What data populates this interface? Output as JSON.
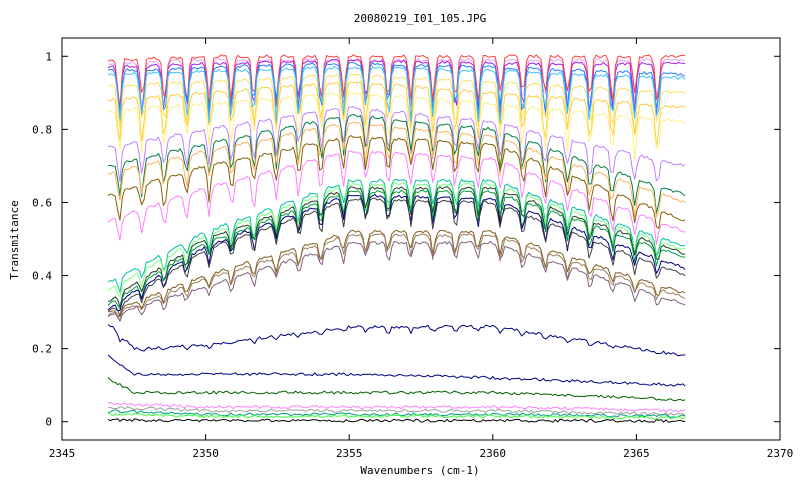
{
  "chart_data": {
    "type": "line",
    "title": "20080219_I01_105.JPG",
    "xlabel": "Wavenumbers (cm-1)",
    "ylabel": "Transmitance",
    "xlim": [
      2345,
      2370
    ],
    "ylim": [
      -0.05,
      1.05
    ],
    "x_ticks": [
      2345,
      2350,
      2355,
      2360,
      2365,
      2370
    ],
    "y_ticks": [
      0,
      0.2,
      0.4,
      0.6,
      0.8,
      1
    ],
    "x_tick_labels": [
      "2345",
      "2350",
      "2355",
      "2360",
      "2365",
      "2370"
    ],
    "y_tick_labels": [
      "0",
      "0.2",
      "0.4",
      "0.6",
      "0.8",
      "1"
    ],
    "grid": false,
    "legend": "none",
    "x_range_data": [
      2346.6,
      2366.7
    ],
    "series": [
      {
        "color": "#e8a0f0",
        "values": [
          [
            2346.6,
            0.98
          ],
          [
            2350,
            0.99
          ],
          [
            2355,
            0.99
          ],
          [
            2360,
            0.99
          ],
          [
            2366.7,
            0.99
          ]
        ]
      },
      {
        "color": "#a020f0",
        "values": [
          [
            2346.6,
            0.97
          ],
          [
            2350,
            0.98
          ],
          [
            2355,
            0.99
          ],
          [
            2360,
            0.98
          ],
          [
            2366.7,
            0.98
          ]
        ]
      },
      {
        "color": "#ff4040",
        "values": [
          [
            2346.6,
            0.99
          ],
          [
            2350,
            1.0
          ],
          [
            2355,
            1.0
          ],
          [
            2360,
            1.0
          ],
          [
            2366.7,
            1.0
          ]
        ]
      },
      {
        "color": "#2080ff",
        "values": [
          [
            2346.6,
            0.96
          ],
          [
            2350,
            0.97
          ],
          [
            2355,
            0.98
          ],
          [
            2360,
            0.97
          ],
          [
            2366.7,
            0.95
          ]
        ]
      },
      {
        "color": "#ffe060",
        "values": [
          [
            2346.6,
            0.92
          ],
          [
            2350,
            0.93
          ],
          [
            2355,
            0.95
          ],
          [
            2360,
            0.93
          ],
          [
            2366.7,
            0.9
          ]
        ]
      },
      {
        "color": "#ffcc40",
        "values": [
          [
            2346.6,
            0.88
          ],
          [
            2350,
            0.9
          ],
          [
            2355,
            0.93
          ],
          [
            2360,
            0.9
          ],
          [
            2366.7,
            0.86
          ]
        ]
      },
      {
        "color": "#40c0ff",
        "values": [
          [
            2346.6,
            0.95
          ],
          [
            2350,
            0.96
          ],
          [
            2355,
            0.97
          ],
          [
            2360,
            0.96
          ],
          [
            2366.7,
            0.94
          ]
        ]
      },
      {
        "color": "#fff080",
        "values": [
          [
            2346.6,
            0.85
          ],
          [
            2350,
            0.87
          ],
          [
            2355,
            0.9
          ],
          [
            2360,
            0.87
          ],
          [
            2366.7,
            0.82
          ]
        ]
      },
      {
        "color": "#c080ff",
        "values": [
          [
            2346.6,
            0.75
          ],
          [
            2350,
            0.8
          ],
          [
            2355,
            0.86
          ],
          [
            2360,
            0.82
          ],
          [
            2366.7,
            0.7
          ]
        ]
      },
      {
        "color": "#008040",
        "values": [
          [
            2346.6,
            0.7
          ],
          [
            2350,
            0.76
          ],
          [
            2355,
            0.84
          ],
          [
            2360,
            0.8
          ],
          [
            2366.7,
            0.62
          ]
        ]
      },
      {
        "color": "#ffb060",
        "values": [
          [
            2346.6,
            0.68
          ],
          [
            2350,
            0.74
          ],
          [
            2355,
            0.82
          ],
          [
            2360,
            0.78
          ],
          [
            2366.7,
            0.6
          ]
        ]
      },
      {
        "color": "#806000",
        "values": [
          [
            2346.6,
            0.62
          ],
          [
            2350,
            0.7
          ],
          [
            2355,
            0.78
          ],
          [
            2360,
            0.76
          ],
          [
            2366.7,
            0.55
          ]
        ]
      },
      {
        "color": "#ff80ff",
        "values": [
          [
            2346.6,
            0.55
          ],
          [
            2350,
            0.64
          ],
          [
            2355,
            0.74
          ],
          [
            2360,
            0.72
          ],
          [
            2366.7,
            0.52
          ]
        ]
      },
      {
        "color": "#00c0a0",
        "values": [
          [
            2346.6,
            0.38
          ],
          [
            2350,
            0.52
          ],
          [
            2355,
            0.66
          ],
          [
            2360,
            0.66
          ],
          [
            2366.7,
            0.48
          ]
        ]
      },
      {
        "color": "#80ff80",
        "values": [
          [
            2346.6,
            0.36
          ],
          [
            2350,
            0.51
          ],
          [
            2355,
            0.65
          ],
          [
            2360,
            0.65
          ],
          [
            2366.7,
            0.47
          ]
        ]
      },
      {
        "color": "#204020",
        "values": [
          [
            2346.6,
            0.33
          ],
          [
            2350,
            0.5
          ],
          [
            2355,
            0.64
          ],
          [
            2360,
            0.64
          ],
          [
            2366.7,
            0.46
          ]
        ]
      },
      {
        "color": "#00a040",
        "values": [
          [
            2346.6,
            0.32
          ],
          [
            2350,
            0.49
          ],
          [
            2355,
            0.63
          ],
          [
            2360,
            0.63
          ],
          [
            2366.7,
            0.45
          ]
        ]
      },
      {
        "color": "#000080",
        "values": [
          [
            2346.6,
            0.31
          ],
          [
            2350,
            0.48
          ],
          [
            2355,
            0.62
          ],
          [
            2360,
            0.61
          ],
          [
            2366.7,
            0.42
          ]
        ]
      },
      {
        "color": "#404040",
        "values": [
          [
            2346.6,
            0.3
          ],
          [
            2350,
            0.47
          ],
          [
            2355,
            0.61
          ],
          [
            2360,
            0.6
          ],
          [
            2366.7,
            0.4
          ]
        ]
      },
      {
        "color": "#806020",
        "values": [
          [
            2346.6,
            0.3
          ],
          [
            2350,
            0.4
          ],
          [
            2355,
            0.52
          ],
          [
            2360,
            0.52
          ],
          [
            2366.7,
            0.35
          ]
        ]
      },
      {
        "color": "#a08060",
        "values": [
          [
            2346.6,
            0.29
          ],
          [
            2350,
            0.39
          ],
          [
            2355,
            0.51
          ],
          [
            2360,
            0.51
          ],
          [
            2366.7,
            0.34
          ]
        ]
      },
      {
        "color": "#806080",
        "values": [
          [
            2346.6,
            0.29
          ],
          [
            2350,
            0.37
          ],
          [
            2355,
            0.49
          ],
          [
            2360,
            0.49
          ],
          [
            2366.7,
            0.32
          ]
        ]
      },
      {
        "color": "#000080",
        "values": [
          [
            2346.6,
            0.27
          ],
          [
            2347.5,
            0.2
          ],
          [
            2350,
            0.21
          ],
          [
            2355,
            0.26
          ],
          [
            2360,
            0.26
          ],
          [
            2366.7,
            0.18
          ]
        ]
      },
      {
        "color": "#000080",
        "values": [
          [
            2346.6,
            0.18
          ],
          [
            2347.5,
            0.13
          ],
          [
            2350,
            0.13
          ],
          [
            2355,
            0.13
          ],
          [
            2360,
            0.12
          ],
          [
            2366.7,
            0.1
          ]
        ]
      },
      {
        "color": "#006000",
        "values": [
          [
            2346.6,
            0.12
          ],
          [
            2347.5,
            0.08
          ],
          [
            2350,
            0.08
          ],
          [
            2355,
            0.08
          ],
          [
            2360,
            0.08
          ],
          [
            2366.7,
            0.06
          ]
        ]
      },
      {
        "color": "#ff80ff",
        "values": [
          [
            2346.6,
            0.05
          ],
          [
            2350,
            0.04
          ],
          [
            2355,
            0.04
          ],
          [
            2360,
            0.04
          ],
          [
            2366.7,
            0.03
          ]
        ]
      },
      {
        "color": "#a0a0a0",
        "values": [
          [
            2346.6,
            0.04
          ],
          [
            2350,
            0.03
          ],
          [
            2355,
            0.03
          ],
          [
            2360,
            0.03
          ],
          [
            2366.7,
            0.02
          ]
        ]
      },
      {
        "color": "#00a080",
        "values": [
          [
            2346.6,
            0.03
          ],
          [
            2350,
            0.02
          ],
          [
            2355,
            0.02
          ],
          [
            2360,
            0.02
          ],
          [
            2366.7,
            0.015
          ]
        ]
      },
      {
        "color": "#40ff40",
        "values": [
          [
            2346.6,
            0.02
          ],
          [
            2350,
            0.015
          ],
          [
            2355,
            0.015
          ],
          [
            2360,
            0.015
          ],
          [
            2366.7,
            0.01
          ]
        ]
      },
      {
        "color": "#000000",
        "values": [
          [
            2346.6,
            0.005
          ],
          [
            2350,
            0.003
          ],
          [
            2355,
            0.003
          ],
          [
            2360,
            0.003
          ],
          [
            2366.7,
            0.002
          ]
        ]
      }
    ]
  }
}
